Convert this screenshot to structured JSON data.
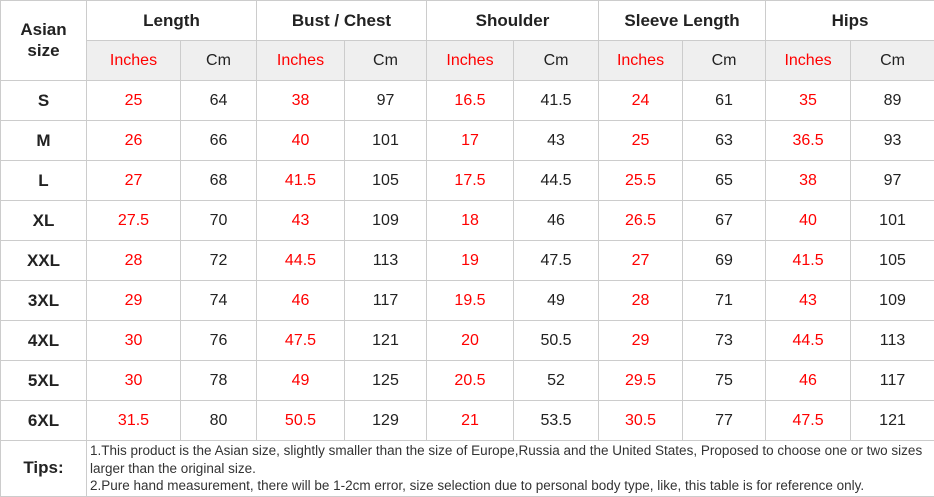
{
  "colors": {
    "red_accent": "#ff0000",
    "text": "#222222",
    "border": "#cccccc",
    "subheader_bg": "#efefef"
  },
  "table": {
    "corner_header": "Asian size",
    "groups": [
      {
        "label": "Length"
      },
      {
        "label": "Bust / Chest"
      },
      {
        "label": "Shoulder"
      },
      {
        "label": "Sleeve Length"
      },
      {
        "label": "Hips"
      }
    ],
    "units": {
      "inches": "Inches",
      "cm": "Cm"
    },
    "rows": [
      {
        "size": "S",
        "values": [
          "25",
          "64",
          "38",
          "97",
          "16.5",
          "41.5",
          "24",
          "61",
          "35",
          "89"
        ]
      },
      {
        "size": "M",
        "values": [
          "26",
          "66",
          "40",
          "101",
          "17",
          "43",
          "25",
          "63",
          "36.5",
          "93"
        ]
      },
      {
        "size": "L",
        "values": [
          "27",
          "68",
          "41.5",
          "105",
          "17.5",
          "44.5",
          "25.5",
          "65",
          "38",
          "97"
        ]
      },
      {
        "size": "XL",
        "values": [
          "27.5",
          "70",
          "43",
          "109",
          "18",
          "46",
          "26.5",
          "67",
          "40",
          "101"
        ]
      },
      {
        "size": "XXL",
        "values": [
          "28",
          "72",
          "44.5",
          "113",
          "19",
          "47.5",
          "27",
          "69",
          "41.5",
          "105"
        ]
      },
      {
        "size": "3XL",
        "values": [
          "29",
          "74",
          "46",
          "117",
          "19.5",
          "49",
          "28",
          "71",
          "43",
          "109"
        ]
      },
      {
        "size": "4XL",
        "values": [
          "30",
          "76",
          "47.5",
          "121",
          "20",
          "50.5",
          "29",
          "73",
          "44.5",
          "113"
        ]
      },
      {
        "size": "5XL",
        "values": [
          "30",
          "78",
          "49",
          "125",
          "20.5",
          "52",
          "29.5",
          "75",
          "46",
          "117"
        ]
      },
      {
        "size": "6XL",
        "values": [
          "31.5",
          "80",
          "50.5",
          "129",
          "21",
          "53.5",
          "30.5",
          "77",
          "47.5",
          "121"
        ]
      }
    ],
    "tips_label": "Tips:",
    "tips": [
      "1.This product is the Asian size, slightly smaller than the size of Europe,Russia and the United States, Proposed to choose one or two sizes larger than the original size.",
      "2.Pure hand measurement, there will be 1-2cm error, size selection due to personal body type, like, this table is for reference only."
    ]
  },
  "chart_data": {
    "type": "table",
    "columns": [
      "Asian size",
      "Length Inches",
      "Length Cm",
      "Bust / Chest Inches",
      "Bust / Chest Cm",
      "Shoulder Inches",
      "Shoulder Cm",
      "Sleeve Length Inches",
      "Sleeve Length Cm",
      "Hips Inches",
      "Hips Cm"
    ],
    "rows": [
      [
        "S",
        25,
        64,
        38,
        97,
        16.5,
        41.5,
        24,
        61,
        35,
        89
      ],
      [
        "M",
        26,
        66,
        40,
        101,
        17,
        43,
        25,
        63,
        36.5,
        93
      ],
      [
        "L",
        27,
        68,
        41.5,
        105,
        17.5,
        44.5,
        25.5,
        65,
        38,
        97
      ],
      [
        "XL",
        27.5,
        70,
        43,
        109,
        18,
        46,
        26.5,
        67,
        40,
        101
      ],
      [
        "XXL",
        28,
        72,
        44.5,
        113,
        19,
        47.5,
        27,
        69,
        41.5,
        105
      ],
      [
        "3XL",
        29,
        74,
        46,
        117,
        19.5,
        49,
        28,
        71,
        43,
        109
      ],
      [
        "4XL",
        30,
        76,
        47.5,
        121,
        20,
        50.5,
        29,
        73,
        44.5,
        113
      ],
      [
        "5XL",
        30,
        78,
        49,
        125,
        20.5,
        52,
        29.5,
        75,
        46,
        117
      ],
      [
        "6XL",
        31.5,
        80,
        50.5,
        129,
        21,
        53.5,
        30.5,
        77,
        47.5,
        121
      ]
    ],
    "notes": [
      "1.This product is the Asian size, slightly smaller than the size of Europe,Russia and the United States, Proposed to choose one or two sizes larger than the original size.",
      "2.Pure hand measurement, there will be 1-2cm error, size selection due to personal body type, like, this table is for reference only."
    ]
  }
}
